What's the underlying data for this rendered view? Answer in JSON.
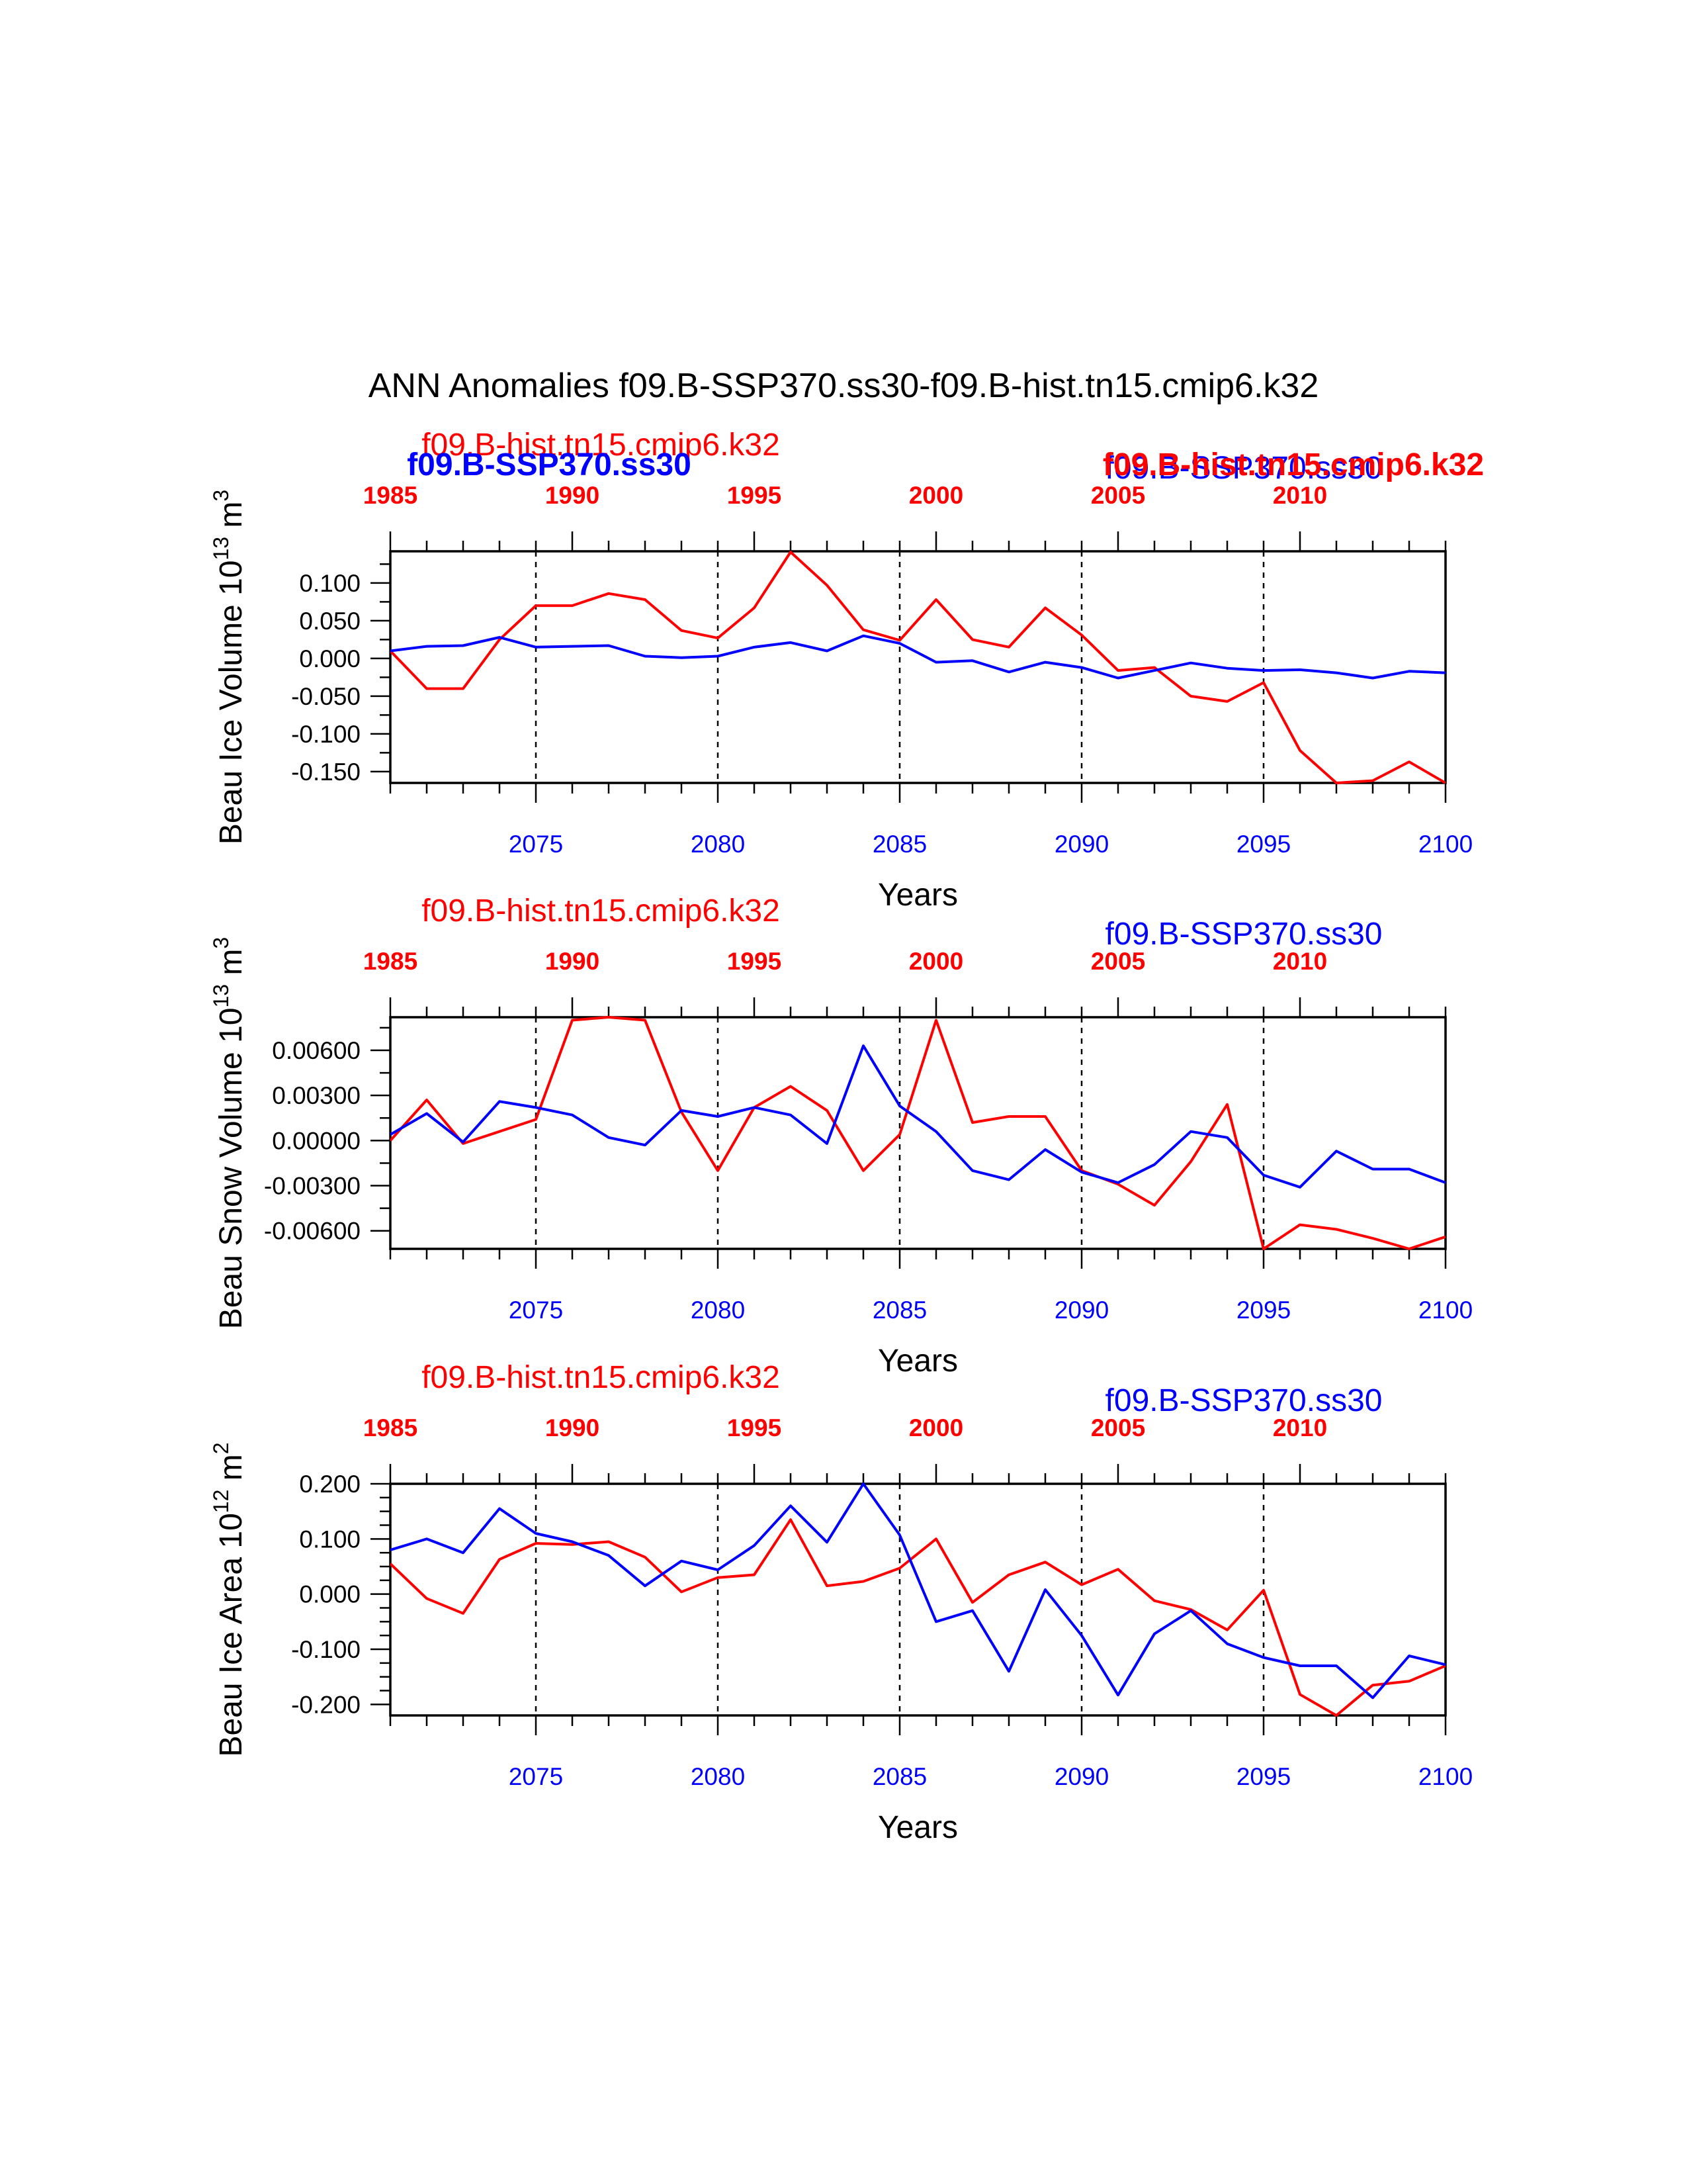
{
  "title": "ANN Anomalies f09.B-SSP370.ss30-f09.B-hist.tn15.cmip6.k32",
  "colors": {
    "hist": "#ff0000",
    "ssp": "#0000ff",
    "axis": "#000000"
  },
  "chart_data": [
    {
      "type": "line",
      "ylabel": "Beau Ice Volume 10",
      "ylabel_exp": "13",
      "ylabel_unit": " m",
      "ylabel_unit_exp": "3",
      "xlabel": "Years",
      "hist_label": "f09.B-hist.tn15.cmip6.k32",
      "ssp_label": "f09.B-SSP370.ss30",
      "overlap_labels": [
        {
          "text": "f09.B-SSP370.ss30",
          "color": "ssp",
          "pos": "left"
        },
        {
          "text": "f09.B-hist.tn15.cmip6.k32",
          "color": "hist",
          "pos": "right"
        }
      ],
      "x": [
        2071,
        2072,
        2073,
        2074,
        2075,
        2076,
        2077,
        2078,
        2079,
        2080,
        2081,
        2082,
        2083,
        2084,
        2085,
        2086,
        2087,
        2088,
        2089,
        2090,
        2091,
        2092,
        2093,
        2094,
        2095,
        2096,
        2097,
        2098,
        2099,
        2100
      ],
      "xlim": [
        2071,
        2100
      ],
      "ylim": [
        -0.165,
        0.142
      ],
      "yticks": [
        -0.15,
        -0.1,
        -0.05,
        0.0,
        0.05,
        0.1
      ],
      "ytick_labels": [
        "-0.150",
        "-0.100",
        "-0.050",
        "0.000",
        "0.050",
        "0.100"
      ],
      "yminor": 0.025,
      "series": [
        {
          "name": "f09.B-hist.tn15.cmip6.k32",
          "color": "hist",
          "values": [
            0.01,
            -0.04,
            -0.04,
            0.025,
            0.07,
            0.07,
            0.086,
            0.078,
            0.037,
            0.027,
            0.067,
            0.141,
            0.097,
            0.038,
            0.024,
            0.078,
            0.025,
            0.015,
            0.067,
            0.031,
            -0.016,
            -0.012,
            -0.05,
            -0.057,
            -0.032,
            -0.122,
            -0.165,
            -0.162,
            -0.137,
            -0.165
          ]
        },
        {
          "name": "f09.B-SSP370.ss30",
          "color": "ssp",
          "values": [
            0.01,
            0.016,
            0.017,
            0.028,
            0.015,
            0.016,
            0.017,
            0.003,
            0.001,
            0.003,
            0.015,
            0.021,
            0.01,
            0.03,
            0.02,
            -0.005,
            -0.003,
            -0.018,
            -0.005,
            -0.012,
            -0.026,
            -0.016,
            -0.006,
            -0.013,
            -0.016,
            -0.015,
            -0.019,
            -0.026,
            -0.017,
            -0.019
          ]
        }
      ]
    },
    {
      "type": "line",
      "ylabel": "Beau Snow Volume 10",
      "ylabel_exp": "13",
      "ylabel_unit": " m",
      "ylabel_unit_exp": "3",
      "xlabel": "Years",
      "hist_label": "f09.B-hist.tn15.cmip6.k32",
      "ssp_label": "f09.B-SSP370.ss30",
      "overlap_labels": [],
      "x": [
        2071,
        2072,
        2073,
        2074,
        2075,
        2076,
        2077,
        2078,
        2079,
        2080,
        2081,
        2082,
        2083,
        2084,
        2085,
        2086,
        2087,
        2088,
        2089,
        2090,
        2091,
        2092,
        2093,
        2094,
        2095,
        2096,
        2097,
        2098,
        2099,
        2100
      ],
      "xlim": [
        2071,
        2100
      ],
      "ylim": [
        -0.0072,
        0.0082
      ],
      "yticks": [
        -0.006,
        -0.003,
        0.0,
        0.003,
        0.006
      ],
      "ytick_labels": [
        "-0.00600",
        "-0.00300",
        "0.00000",
        "0.00300",
        "0.00600"
      ],
      "yminor": 0.0015,
      "series": [
        {
          "name": "f09.B-hist.tn15.cmip6.k32",
          "color": "hist",
          "values": [
            0.0,
            0.0027,
            -0.0002,
            0.0006,
            0.0014,
            0.008,
            0.0082,
            0.008,
            0.0019,
            -0.002,
            0.0022,
            0.0036,
            0.002,
            -0.002,
            0.0004,
            0.008,
            0.0012,
            0.0016,
            0.0016,
            -0.002,
            -0.0029,
            -0.0043,
            -0.0014,
            0.0024,
            -0.0072,
            -0.0056,
            -0.0059,
            -0.0065,
            -0.0072,
            -0.0064
          ]
        },
        {
          "name": "f09.B-SSP370.ss30",
          "color": "ssp",
          "values": [
            0.0004,
            0.0018,
            -0.0001,
            0.0026,
            0.0022,
            0.0017,
            0.0002,
            -0.0003,
            0.002,
            0.0016,
            0.0022,
            0.0017,
            -0.0002,
            0.0063,
            0.0023,
            0.0006,
            -0.002,
            -0.0026,
            -0.0006,
            -0.0021,
            -0.0028,
            -0.0016,
            0.0006,
            0.0002,
            -0.0023,
            -0.0031,
            -0.0007,
            -0.0019,
            -0.0019,
            -0.0028
          ]
        }
      ]
    },
    {
      "type": "line",
      "ylabel": "Beau Ice Area 10",
      "ylabel_exp": "12",
      "ylabel_unit": " m",
      "ylabel_unit_exp": "2",
      "xlabel": "Years",
      "hist_label": "f09.B-hist.tn15.cmip6.k32",
      "ssp_label": "f09.B-SSP370.ss30",
      "overlap_labels": [],
      "x": [
        2071,
        2072,
        2073,
        2074,
        2075,
        2076,
        2077,
        2078,
        2079,
        2080,
        2081,
        2082,
        2083,
        2084,
        2085,
        2086,
        2087,
        2088,
        2089,
        2090,
        2091,
        2092,
        2093,
        2094,
        2095,
        2096,
        2097,
        2098,
        2099,
        2100
      ],
      "xlim": [
        2071,
        2100
      ],
      "ylim": [
        -0.22,
        0.2
      ],
      "yticks": [
        -0.2,
        -0.1,
        0.0,
        0.1,
        0.2
      ],
      "ytick_labels": [
        "-0.200",
        "-0.100",
        "0.000",
        "0.100",
        "0.200"
      ],
      "yminor": 0.025,
      "series": [
        {
          "name": "f09.B-hist.tn15.cmip6.k32",
          "color": "hist",
          "values": [
            0.055,
            -0.008,
            -0.035,
            0.063,
            0.092,
            0.09,
            0.095,
            0.067,
            0.004,
            0.03,
            0.035,
            0.135,
            0.015,
            0.023,
            0.047,
            0.1,
            -0.015,
            0.035,
            0.058,
            0.017,
            0.045,
            -0.012,
            -0.028,
            -0.065,
            0.007,
            -0.182,
            -0.22,
            -0.165,
            -0.158,
            -0.13
          ]
        },
        {
          "name": "f09.B-SSP370.ss30",
          "color": "ssp",
          "values": [
            0.08,
            0.1,
            0.075,
            0.155,
            0.11,
            0.095,
            0.07,
            0.015,
            0.06,
            0.044,
            0.088,
            0.16,
            0.094,
            0.2,
            0.107,
            -0.05,
            -0.03,
            -0.14,
            0.008,
            -0.075,
            -0.183,
            -0.072,
            -0.03,
            -0.09,
            -0.115,
            -0.13,
            -0.13,
            -0.188,
            -0.112,
            -0.128
          ]
        }
      ]
    }
  ],
  "bottom_axis": {
    "ticks": [
      2075,
      2080,
      2085,
      2090,
      2095,
      2100
    ],
    "labels": [
      "2075",
      "2080",
      "2085",
      "2090",
      "2095",
      "2100"
    ]
  },
  "top_axis": {
    "ticks": [
      2071,
      2076,
      2081,
      2086,
      2091,
      2096
    ],
    "labels": [
      "1985",
      "1990",
      "1995",
      "2000",
      "2005",
      "2010"
    ]
  }
}
